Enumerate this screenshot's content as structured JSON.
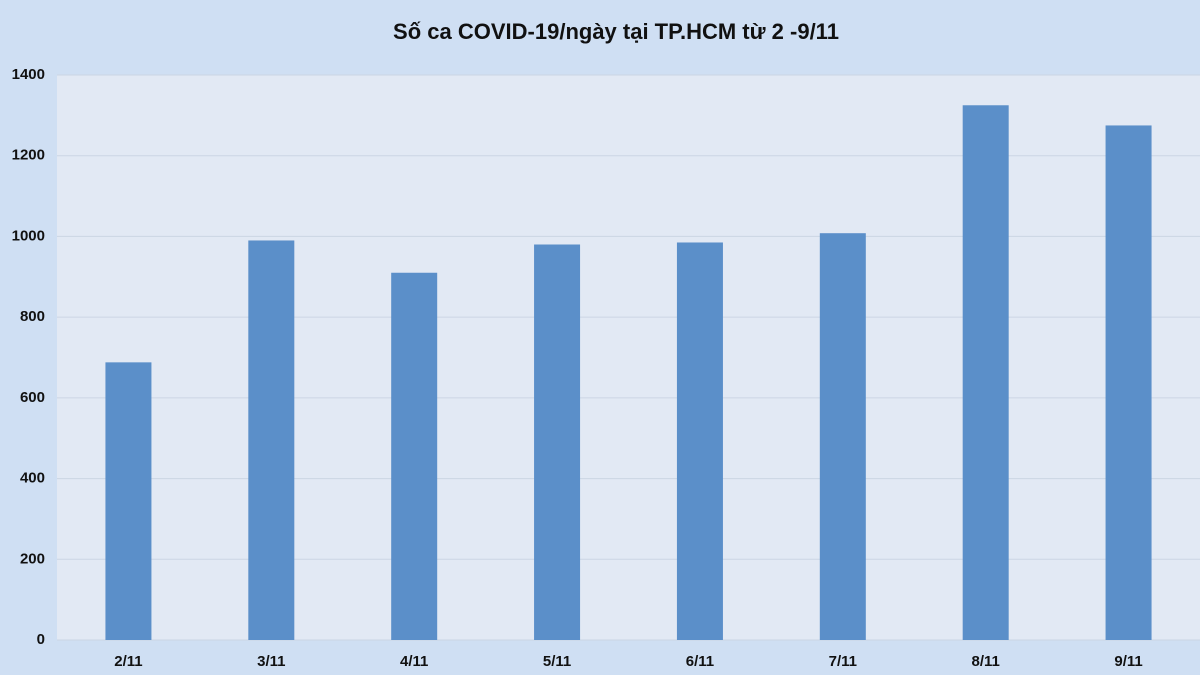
{
  "chart_data": {
    "type": "bar",
    "title": "Số ca COVID-19/ngày tại TP.HCM từ 2 -9/11",
    "categories": [
      "2/11",
      "3/11",
      "4/11",
      "5/11",
      "6/11",
      "7/11",
      "8/11",
      "9/11"
    ],
    "values": [
      688,
      990,
      910,
      980,
      985,
      1008,
      1325,
      1275
    ],
    "color": "#5b8fc9",
    "ylim": [
      0,
      1400
    ],
    "yticks": [
      0,
      200,
      400,
      600,
      800,
      1000,
      1200,
      1400
    ],
    "grid": true
  }
}
